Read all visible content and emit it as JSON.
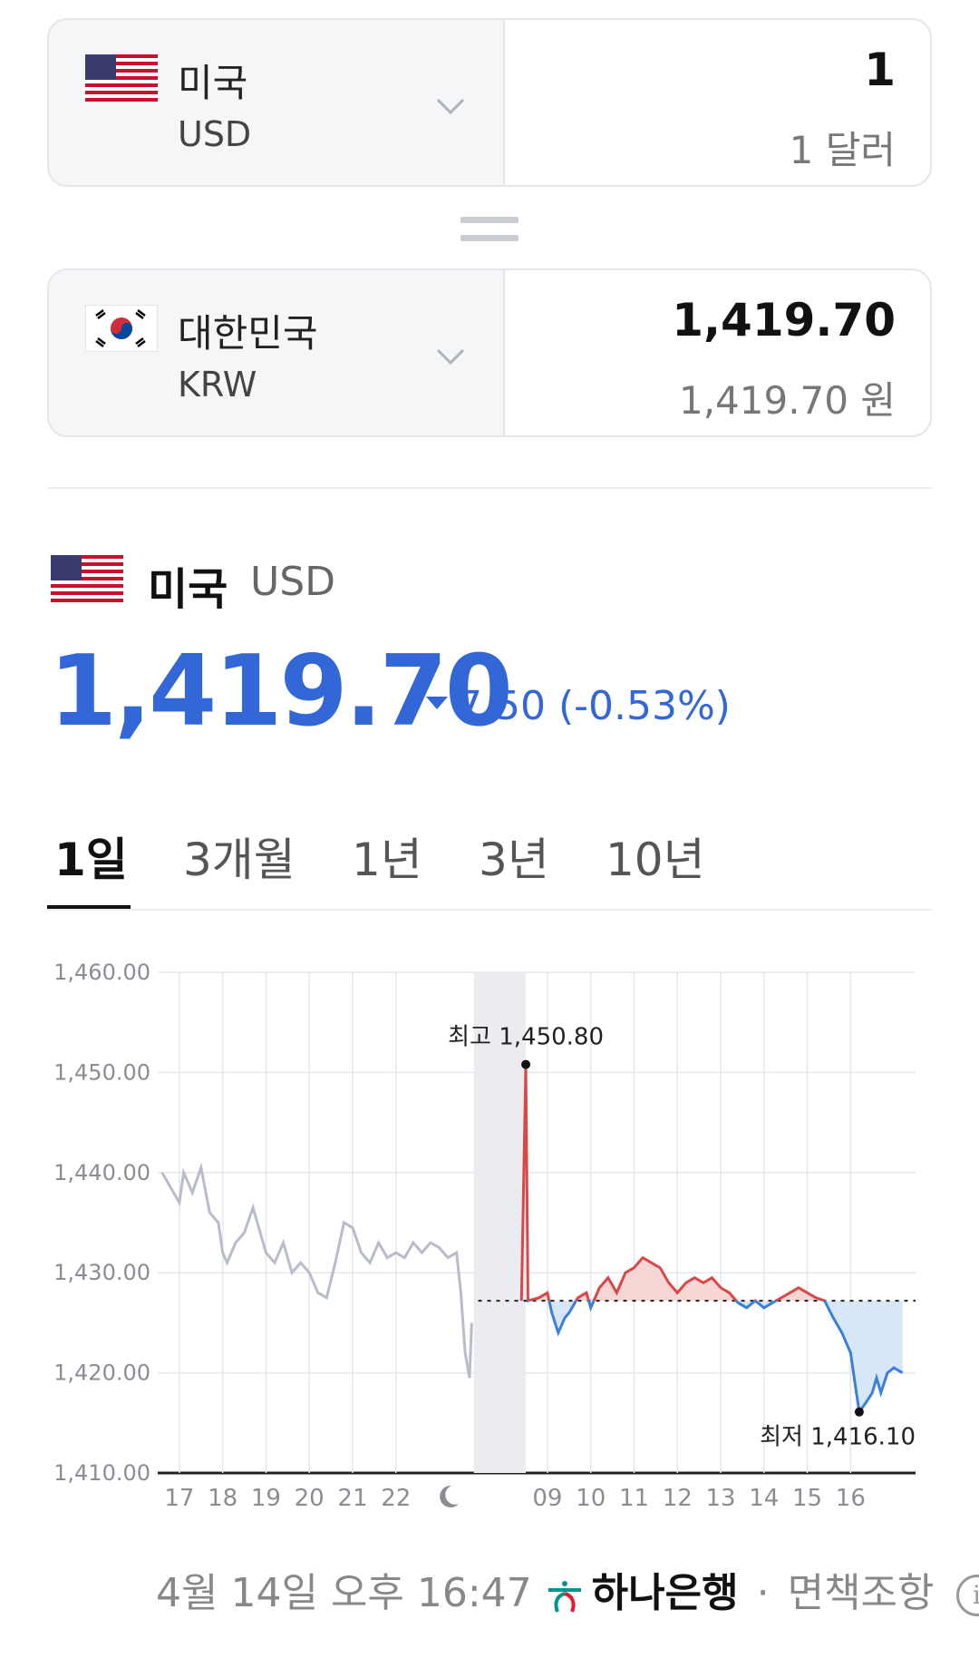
{
  "from_currency": {
    "country": "미국",
    "code": "USD",
    "amount": "1",
    "amount_text": "1 달러",
    "flag": "us-flag-icon"
  },
  "to_currency": {
    "country": "대한민국",
    "code": "KRW",
    "amount": "1,419.70",
    "amount_text": "1,419.70 원",
    "flag": "kr-flag-icon"
  },
  "summary": {
    "country": "미국",
    "code": "USD",
    "price": "1,419.70",
    "change": "7.50 (-0.53%)",
    "direction": "down",
    "color": "#3366d6"
  },
  "tabs": [
    {
      "label": "1일",
      "active": true
    },
    {
      "label": "3개월",
      "active": false
    },
    {
      "label": "1년",
      "active": false
    },
    {
      "label": "3년",
      "active": false
    },
    {
      "label": "10년",
      "active": false
    }
  ],
  "chart_data": {
    "type": "line",
    "y_tick_labels": [
      "1,460.00",
      "1,450.00",
      "1,440.00",
      "1,430.00",
      "1,420.00",
      "1,410.00"
    ],
    "ylim": [
      1410,
      1460
    ],
    "x_tick_labels": [
      "17",
      "18",
      "19",
      "20",
      "21",
      "22",
      "09",
      "10",
      "11",
      "12",
      "13",
      "14",
      "15",
      "16"
    ],
    "night_marker": "moon-icon",
    "reference_value": 1427.2,
    "high": {
      "label": "최고 1,450.80",
      "value": 1450.8
    },
    "low": {
      "label": "최저 1,416.10",
      "value": 1416.1
    },
    "colors": {
      "previous": "#b8bccb",
      "up": "#d94848",
      "down": "#3a7fd9"
    },
    "series": [
      {
        "segment": "previous",
        "points": [
          [
            16.6,
            1440.0
          ],
          [
            16.8,
            1438.5
          ],
          [
            17.0,
            1437.0
          ],
          [
            17.1,
            1440.0
          ],
          [
            17.3,
            1438.0
          ],
          [
            17.5,
            1440.5
          ],
          [
            17.7,
            1436.0
          ],
          [
            17.9,
            1435.0
          ],
          [
            18.0,
            1432.0
          ],
          [
            18.1,
            1431.0
          ],
          [
            18.3,
            1433.0
          ],
          [
            18.5,
            1434.0
          ],
          [
            18.7,
            1436.5
          ],
          [
            18.8,
            1435.0
          ],
          [
            19.0,
            1432.0
          ],
          [
            19.2,
            1431.0
          ],
          [
            19.4,
            1433.0
          ],
          [
            19.6,
            1430.0
          ],
          [
            19.8,
            1431.0
          ],
          [
            20.0,
            1430.0
          ],
          [
            20.2,
            1428.0
          ],
          [
            20.4,
            1427.5
          ],
          [
            20.6,
            1431.0
          ],
          [
            20.8,
            1435.0
          ],
          [
            21.0,
            1434.5
          ],
          [
            21.2,
            1432.0
          ],
          [
            21.4,
            1431.0
          ],
          [
            21.6,
            1433.0
          ],
          [
            21.8,
            1431.5
          ],
          [
            22.0,
            1432.0
          ],
          [
            22.2,
            1431.5
          ],
          [
            22.4,
            1433.0
          ],
          [
            22.6,
            1432.0
          ],
          [
            22.8,
            1433.0
          ],
          [
            23.0,
            1432.5
          ],
          [
            23.2,
            1431.5
          ],
          [
            23.4,
            1432.0
          ],
          [
            23.5,
            1428.0
          ],
          [
            23.6,
            1422.0
          ],
          [
            23.7,
            1419.5
          ],
          [
            23.75,
            1425.0
          ]
        ]
      },
      {
        "segment": "today",
        "points": [
          [
            24.9,
            1427.2
          ],
          [
            25.0,
            1450.8
          ],
          [
            25.05,
            1427.2
          ],
          [
            25.3,
            1427.5
          ],
          [
            25.5,
            1428.0
          ],
          [
            25.6,
            1426.0
          ],
          [
            25.75,
            1424.0
          ],
          [
            25.9,
            1425.5
          ],
          [
            26.0,
            1426.0
          ],
          [
            26.2,
            1427.5
          ],
          [
            26.4,
            1428.0
          ],
          [
            26.5,
            1426.5
          ],
          [
            26.7,
            1428.5
          ],
          [
            26.9,
            1429.5
          ],
          [
            27.1,
            1428.0
          ],
          [
            27.3,
            1430.0
          ],
          [
            27.5,
            1430.5
          ],
          [
            27.7,
            1431.5
          ],
          [
            27.9,
            1431.0
          ],
          [
            28.1,
            1430.5
          ],
          [
            28.3,
            1429.0
          ],
          [
            28.5,
            1428.0
          ],
          [
            28.7,
            1429.0
          ],
          [
            28.9,
            1429.5
          ],
          [
            29.1,
            1429.0
          ],
          [
            29.3,
            1429.5
          ],
          [
            29.5,
            1428.5
          ],
          [
            29.7,
            1428.0
          ],
          [
            29.9,
            1427.0
          ],
          [
            30.1,
            1426.5
          ],
          [
            30.3,
            1427.2
          ],
          [
            30.5,
            1426.5
          ],
          [
            30.7,
            1427.0
          ],
          [
            30.9,
            1427.5
          ],
          [
            31.1,
            1428.0
          ],
          [
            31.3,
            1428.5
          ],
          [
            31.5,
            1428.0
          ],
          [
            31.7,
            1427.5
          ],
          [
            31.9,
            1427.2
          ],
          [
            32.1,
            1425.5
          ],
          [
            32.3,
            1424.0
          ],
          [
            32.5,
            1422.0
          ],
          [
            32.6,
            1419.0
          ],
          [
            32.7,
            1416.1
          ],
          [
            32.85,
            1417.0
          ],
          [
            33.0,
            1418.0
          ],
          [
            33.1,
            1419.5
          ],
          [
            33.2,
            1418.0
          ],
          [
            33.35,
            1420.0
          ],
          [
            33.5,
            1420.5
          ],
          [
            33.7,
            1420.0
          ]
        ]
      }
    ]
  },
  "footer": {
    "timestamp": "4월 14일 오후 16:47",
    "bank_name": "하나은행",
    "separator": "·",
    "disclaimer": "면책조항",
    "info": "i"
  }
}
